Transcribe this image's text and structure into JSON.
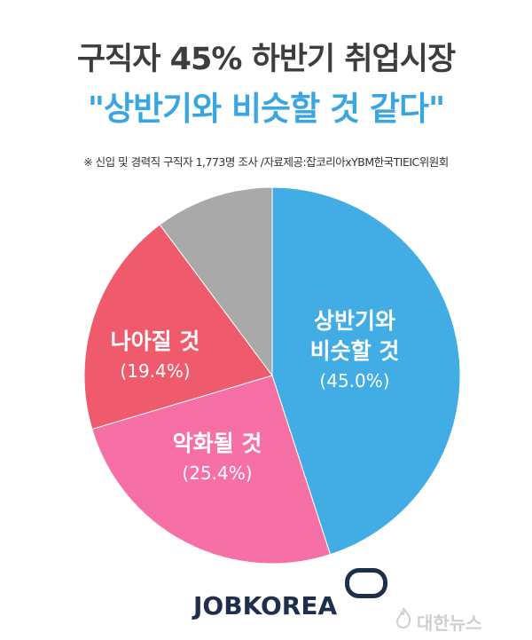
{
  "header": {
    "title": "구직자 45% 하반기 취업시장",
    "subtitle": "\"상반기와 비슷할 것 같다\"",
    "source": "※ 신입 및 경력직 구직자 1,773명 조사 /자료제공:잡코리아xYBM한국TIEIC위원회"
  },
  "chart_data": {
    "type": "pie",
    "start_angle_deg": 0,
    "direction": "clockwise",
    "slices": [
      {
        "name_lines": [
          "상반기와",
          "비슷할 것"
        ],
        "value": 45.0,
        "value_label": "(45.0%)",
        "color": "#42ade4"
      },
      {
        "name_lines": [
          "악화될 것"
        ],
        "value": 25.4,
        "value_label": "(25.4%)",
        "color": "#f66fa5"
      },
      {
        "name_lines": [
          "나아질 것"
        ],
        "value": 19.4,
        "value_label": "(19.4%)",
        "color": "#ef5a6d"
      },
      {
        "name_lines": [],
        "value": 10.2,
        "value_label": "",
        "color": "#a9a9a9"
      }
    ]
  },
  "footer": {
    "logo": "JOBKOREA",
    "watermark": "대한뉴스"
  }
}
